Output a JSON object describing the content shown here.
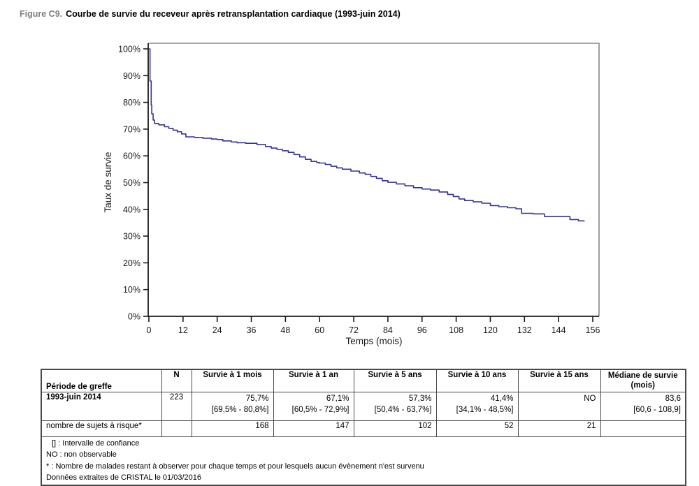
{
  "figure": {
    "label": "Figure C9.",
    "title": "Courbe de survie du receveur après retransplantation cardiaque (1993-juin 2014)"
  },
  "chart_data": {
    "type": "line",
    "subtype": "kaplan-meier-step",
    "title": "",
    "xlabel": "Temps (mois)",
    "ylabel": "Taux de survie",
    "xlim": [
      0,
      156
    ],
    "ylim": [
      0,
      100
    ],
    "xticks": [
      0,
      12,
      24,
      36,
      48,
      60,
      72,
      84,
      96,
      108,
      120,
      132,
      144,
      156
    ],
    "yticks": [
      0,
      10,
      20,
      30,
      40,
      50,
      60,
      70,
      80,
      90,
      100
    ],
    "ytick_suffix": "%",
    "grid": false,
    "legend": "none",
    "line_color": "#333399",
    "axis_color": "#1a1a1a",
    "frame_color": "#858585",
    "series": [
      {
        "name": "Survie du receveur après retransplantation cardiaque",
        "points": [
          [
            0,
            100
          ],
          [
            0.4,
            88
          ],
          [
            0.8,
            79
          ],
          [
            1,
            75.7
          ],
          [
            1.5,
            73.4
          ],
          [
            2,
            72.1
          ],
          [
            3.5,
            71.6
          ],
          [
            5.5,
            70.9
          ],
          [
            7,
            70.3
          ],
          [
            8.5,
            69.6
          ],
          [
            10,
            69.0
          ],
          [
            11.5,
            68.2
          ],
          [
            13,
            67.1
          ],
          [
            16,
            66.9
          ],
          [
            19,
            66.6
          ],
          [
            22,
            66.3
          ],
          [
            24,
            66.1
          ],
          [
            26,
            65.6
          ],
          [
            29,
            65.2
          ],
          [
            31,
            64.9
          ],
          [
            34,
            64.7
          ],
          [
            38,
            64.2
          ],
          [
            41,
            63.5
          ],
          [
            43,
            62.9
          ],
          [
            45,
            62.4
          ],
          [
            47,
            61.9
          ],
          [
            49,
            61.3
          ],
          [
            51,
            60.5
          ],
          [
            53,
            59.6
          ],
          [
            55,
            58.7
          ],
          [
            57,
            57.9
          ],
          [
            59,
            57.5
          ],
          [
            60,
            57.3
          ],
          [
            62,
            56.8
          ],
          [
            64,
            56.1
          ],
          [
            66,
            55.5
          ],
          [
            68,
            55.0
          ],
          [
            71,
            54.3
          ],
          [
            74,
            53.6
          ],
          [
            76,
            53.1
          ],
          [
            78,
            52.3
          ],
          [
            80,
            51.6
          ],
          [
            82,
            50.7
          ],
          [
            84,
            50.1
          ],
          [
            87,
            49.5
          ],
          [
            90,
            48.8
          ],
          [
            93,
            48.1
          ],
          [
            96,
            47.6
          ],
          [
            99,
            47.2
          ],
          [
            102,
            46.5
          ],
          [
            105,
            45.6
          ],
          [
            107,
            44.8
          ],
          [
            109,
            43.9
          ],
          [
            111,
            43.3
          ],
          [
            114,
            42.8
          ],
          [
            117,
            42.3
          ],
          [
            120,
            41.4
          ],
          [
            123,
            41.0
          ],
          [
            126,
            40.6
          ],
          [
            129,
            40.2
          ],
          [
            131,
            38.5
          ],
          [
            135,
            38.3
          ],
          [
            139,
            37.3
          ],
          [
            148,
            36.2
          ],
          [
            151,
            35.7
          ],
          [
            153,
            35.5
          ]
        ]
      }
    ]
  },
  "table": {
    "headers": [
      "Période de greffe",
      "N",
      "Survie à 1 mois",
      "Survie à 1 an",
      "Survie à 5 ans",
      "Survie à 10 ans",
      "Survie à 15 ans",
      "Médiane de survie (mois)"
    ],
    "row_period": {
      "label": "1993-juin 2014",
      "n": "223",
      "values": [
        "75,7%",
        "67,1%",
        "57,3%",
        "41,4%",
        "NO",
        "83,6"
      ],
      "ci": [
        "[69,5% - 80,8%]",
        "[60,5% - 72,9%]",
        "[50,4% - 63,7%]",
        "[34,1% - 48,5%]",
        "",
        "[60,6 - 108,9]"
      ]
    },
    "row_at_risk": {
      "label": "nombre de sujets à risque*",
      "n": "",
      "values": [
        "168",
        "147",
        "102",
        "52",
        "21",
        ""
      ]
    }
  },
  "footnotes": [
    "[] : Intervalle de confiance",
    "NO : non observable",
    "* : Nombre de malades restant à observer pour chaque temps et pour lesquels aucun évènement n'est survenu",
    "Données extraites de CRISTAL le 01/03/2016"
  ]
}
